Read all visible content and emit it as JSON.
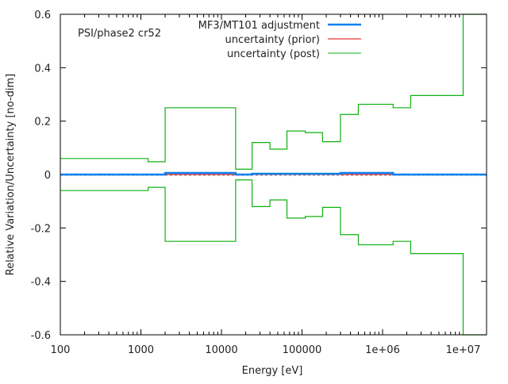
{
  "chart_data": {
    "type": "line",
    "title": "",
    "annotation": "PSI/phase2 cr52",
    "xlabel": "Energy [eV]",
    "ylabel": "Relative Variation/Uncertainty [no-dim]",
    "xscale": "log",
    "xlim": [
      100,
      20000000
    ],
    "ylim": [
      -0.6,
      0.6
    ],
    "xticks": [
      {
        "value": 100,
        "label": "100"
      },
      {
        "value": 1000,
        "label": "1000"
      },
      {
        "value": 10000,
        "label": "10000"
      },
      {
        "value": 100000,
        "label": "100000"
      },
      {
        "value": 1000000,
        "label": "1e+06"
      },
      {
        "value": 10000000,
        "label": "1e+07"
      }
    ],
    "yticks": [
      {
        "value": 0.6,
        "label": "0.6"
      },
      {
        "value": 0.4,
        "label": "0.4"
      },
      {
        "value": 0.2,
        "label": "0.2"
      },
      {
        "value": 0,
        "label": "0"
      },
      {
        "value": -0.2,
        "label": "-0.2"
      },
      {
        "value": -0.4,
        "label": "-0.4"
      },
      {
        "value": -0.6,
        "label": "-0.6"
      }
    ],
    "legend_position": "top-center",
    "bin_edges": [
      100,
      1230,
      2000,
      15000,
      24000,
      40000,
      65000,
      110000,
      180000,
      300000,
      500000,
      1350000,
      2230000,
      10000000,
      20000000
    ],
    "series": [
      {
        "name": "MF3/MT101 adjustment",
        "color": "#0a7ff0",
        "style": "step",
        "values": [
          0.0,
          0.0,
          0.006,
          0.0,
          0.003,
          0.003,
          0.003,
          0.003,
          0.003,
          0.006,
          0.006,
          0.0,
          0.0,
          0.0
        ]
      },
      {
        "name": "uncertainty (prior)",
        "color": "#e00000",
        "style": "step",
        "values": [
          0,
          0,
          0,
          0,
          0,
          0,
          0,
          0,
          0,
          0,
          0,
          0,
          0,
          0
        ]
      },
      {
        "name": "uncertainty (post)",
        "color": "#10b010",
        "style": "step-band",
        "values": [
          0.06,
          0.048,
          0.25,
          0.02,
          0.12,
          0.095,
          0.163,
          0.157,
          0.123,
          0.225,
          0.263,
          0.25,
          0.296,
          0.6
        ]
      }
    ]
  }
}
